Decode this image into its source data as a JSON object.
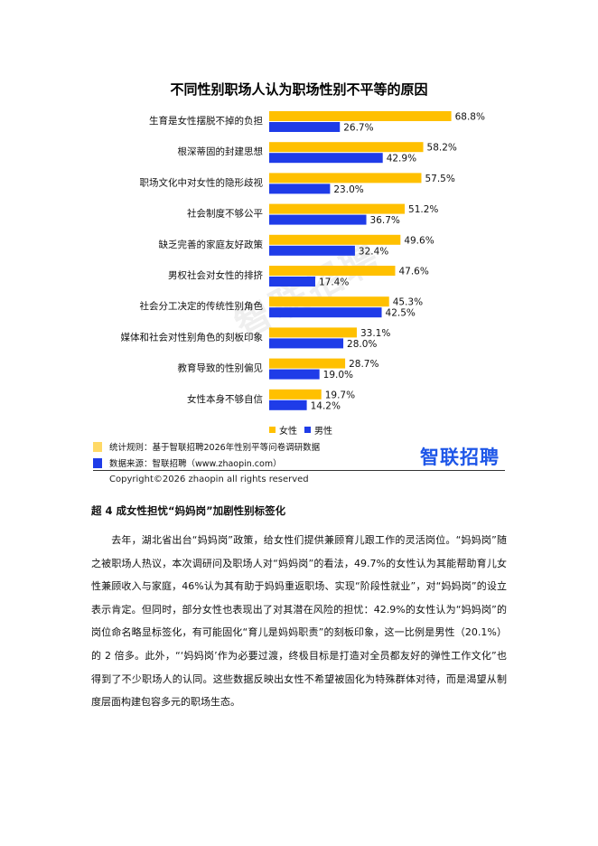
{
  "chart_data": {
    "type": "bar",
    "orientation": "horizontal",
    "title": "不同性别职场人认为职场性别不平等的原因",
    "categories": [
      "生育是女性摆脱不掉的负担",
      "根深蒂固的封建思想",
      "职场文化中对女性的隐形歧视",
      "社会制度不够公平",
      "缺乏完善的家庭友好政策",
      "男权社会对女性的排挤",
      "社会分工决定的传统性别角色",
      "媒体和社会对性别角色的刻板印象",
      "教育导致的性别偏见",
      "女性本身不够自信"
    ],
    "series": [
      {
        "name": "女性",
        "color": "#FFC000",
        "values": [
          68.8,
          58.2,
          57.5,
          51.2,
          49.6,
          47.6,
          45.3,
          33.1,
          28.7,
          19.7
        ],
        "labels": [
          "68.8%",
          "58.2%",
          "57.5%",
          "51.2%",
          "49.6%",
          "47.6%",
          "45.3%",
          "33.1%",
          "28.7%",
          "19.7%"
        ]
      },
      {
        "name": "男性",
        "color": "#1F3CE8",
        "values": [
          26.7,
          42.9,
          23.0,
          36.7,
          32.4,
          17.4,
          42.5,
          28.0,
          19.0,
          14.2
        ],
        "labels": [
          "26.7%",
          "42.9%",
          "23.0%",
          "36.7%",
          "32.4%",
          "17.4%",
          "42.5%",
          "28.0%",
          "19.0%",
          "14.2%"
        ]
      }
    ],
    "xlim": [
      0,
      80
    ],
    "legend_position": "bottom",
    "grid": false
  },
  "legend": {
    "female": "女性",
    "male": "男性"
  },
  "watermark": "智联招聘",
  "footer": {
    "rule_label": "统计规则：基于智联招聘2026年性别平等问卷调研数据",
    "source_label": "数据来源：智联招聘（www.zhaopin.com）",
    "rule_color": "#FFD966",
    "source_color": "#1F3CE8",
    "logo_text": "智联招聘",
    "copyright": "Copyright©2026 zhaopin all rights reserved"
  },
  "article": {
    "heading": "超 4 成女性担忧“妈妈岗”加剧性别标签化",
    "paragraph": "去年，湖北省出台“妈妈岗”政策，给女性们提供兼顾育儿跟工作的灵活岗位。“妈妈岗”随之被职场人热议，本次调研问及职场人对“妈妈岗”的看法，49.7%的女性认为其能帮助育儿女性兼顾收入与家庭，46%认为其有助于妈妈重返职场、实现“阶段性就业”，对“妈妈岗”的设立表示肯定。但同时，部分女性也表现出了对其潜在风险的担忧：42.9%的女性认为“妈妈岗”的岗位命名略显标签化，有可能固化“育儿是妈妈职责”的刻板印象，这一比例是男性（20.1%）的 2 倍多。此外，“‘妈妈岗’作为必要过渡，终极目标是打造对全员都友好的弹性工作文化”也得到了不少职场人的认同。这些数据反映出女性不希望被固化为特殊群体对待，而是渴望从制度层面构建包容多元的职场生态。"
  }
}
